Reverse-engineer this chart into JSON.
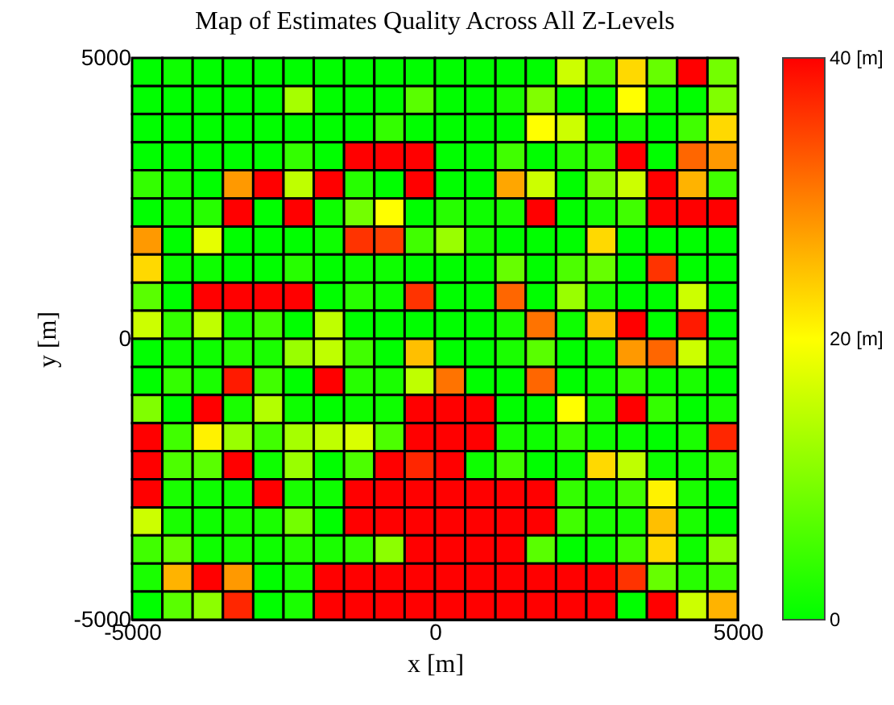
{
  "chart_data": {
    "type": "heatmap",
    "title": "Map of Estimates Quality Across All Z-Levels",
    "xlabel": "x [m]",
    "ylabel": "y [m]",
    "x": [
      -4750,
      -4250,
      -3750,
      -3250,
      -2750,
      -2250,
      -1750,
      -1250,
      -750,
      -250,
      250,
      750,
      1250,
      1750,
      2250,
      2750,
      3250,
      3750,
      4250,
      4750
    ],
    "y": [
      4750,
      4250,
      3750,
      3250,
      2750,
      2250,
      1750,
      1250,
      750,
      250,
      -250,
      -750,
      -1250,
      -1750,
      -2250,
      -2750,
      -3250,
      -3750,
      -4250,
      -4750
    ],
    "xlim": [
      -5000,
      5000
    ],
    "xticks": [
      -5000,
      0,
      5000
    ],
    "ylim": [
      -5000,
      5000
    ],
    "yticks": [
      -5000,
      0,
      5000
    ],
    "clim": [
      0,
      40
    ],
    "cticks": [
      0,
      {
        "value": 20,
        "label": "20 [m]"
      },
      {
        "value": 40,
        "label": "40 [m]"
      }
    ],
    "grid": false,
    "cells": [
      [
        0,
        1,
        0,
        0,
        0,
        0,
        0,
        0,
        0,
        0,
        0,
        0,
        0,
        0,
        16,
        6,
        23,
        8,
        40,
        9
      ],
      [
        0,
        0,
        0,
        0,
        0,
        13,
        0,
        0,
        0,
        7,
        0,
        0,
        2,
        10,
        0,
        0,
        20,
        1,
        0,
        10
      ],
      [
        0,
        0,
        0,
        0,
        0,
        0,
        0,
        0,
        4,
        0,
        0,
        0,
        0,
        20,
        16,
        0,
        2,
        0,
        5,
        23
      ],
      [
        0,
        0,
        0,
        0,
        0,
        4,
        0,
        40,
        40,
        40,
        0,
        0,
        5,
        0,
        3,
        4,
        40,
        0,
        32,
        28
      ],
      [
        4,
        2,
        0,
        28,
        40,
        15,
        40,
        3,
        0,
        40,
        0,
        0,
        27,
        16,
        0,
        10,
        16,
        40,
        26,
        5
      ],
      [
        0,
        1,
        3,
        40,
        0,
        40,
        1,
        9,
        20,
        0,
        3,
        1,
        2,
        40,
        0,
        2,
        5,
        40,
        40,
        40
      ],
      [
        28,
        0,
        18,
        0,
        0,
        0,
        1,
        36,
        35,
        5,
        12,
        2,
        0,
        0,
        0,
        23,
        0,
        0,
        0,
        0
      ],
      [
        23,
        1,
        1,
        0,
        0,
        3,
        0,
        1,
        1,
        0,
        0,
        0,
        8,
        0,
        6,
        8,
        0,
        36,
        0,
        0
      ],
      [
        7,
        0,
        40,
        40,
        40,
        40,
        0,
        3,
        1,
        36,
        0,
        0,
        32,
        0,
        12,
        2,
        0,
        0,
        16,
        0
      ],
      [
        16,
        4,
        15,
        2,
        5,
        0,
        15,
        0,
        0,
        0,
        0,
        0,
        2,
        31,
        1,
        25,
        40,
        0,
        38,
        0
      ],
      [
        0,
        1,
        1,
        3,
        2,
        12,
        15,
        5,
        0,
        25,
        0,
        0,
        2,
        7,
        0,
        1,
        28,
        32,
        16,
        2
      ],
      [
        0,
        4,
        2,
        38,
        5,
        0,
        40,
        3,
        2,
        15,
        31,
        0,
        0,
        32,
        0,
        1,
        4,
        1,
        2,
        0
      ],
      [
        10,
        0,
        40,
        2,
        14,
        1,
        0,
        1,
        1,
        40,
        40,
        40,
        0,
        0,
        20,
        2,
        40,
        4,
        0,
        2
      ],
      [
        40,
        5,
        21,
        12,
        5,
        13,
        15,
        17,
        6,
        40,
        40,
        40,
        2,
        1,
        4,
        1,
        1,
        0,
        2,
        37
      ],
      [
        40,
        6,
        7,
        40,
        1,
        12,
        0,
        6,
        40,
        37,
        40,
        1,
        5,
        0,
        1,
        23,
        15,
        1,
        1,
        4
      ],
      [
        40,
        2,
        1,
        1,
        40,
        2,
        1,
        40,
        40,
        40,
        40,
        40,
        40,
        40,
        4,
        2,
        5,
        21,
        2,
        0
      ],
      [
        16,
        2,
        1,
        2,
        2,
        9,
        0,
        40,
        40,
        40,
        40,
        40,
        40,
        40,
        5,
        2,
        2,
        25,
        2,
        0
      ],
      [
        5,
        8,
        1,
        2,
        1,
        3,
        2,
        4,
        11,
        40,
        40,
        40,
        40,
        7,
        0,
        1,
        5,
        23,
        1,
        11
      ],
      [
        2,
        26,
        40,
        28,
        0,
        2,
        40,
        40,
        40,
        40,
        40,
        40,
        40,
        40,
        40,
        40,
        36,
        8,
        3,
        5
      ],
      [
        0,
        7,
        11,
        37,
        0,
        2,
        40,
        40,
        40,
        40,
        40,
        40,
        40,
        40,
        40,
        40,
        0,
        40,
        16,
        26
      ]
    ]
  }
}
